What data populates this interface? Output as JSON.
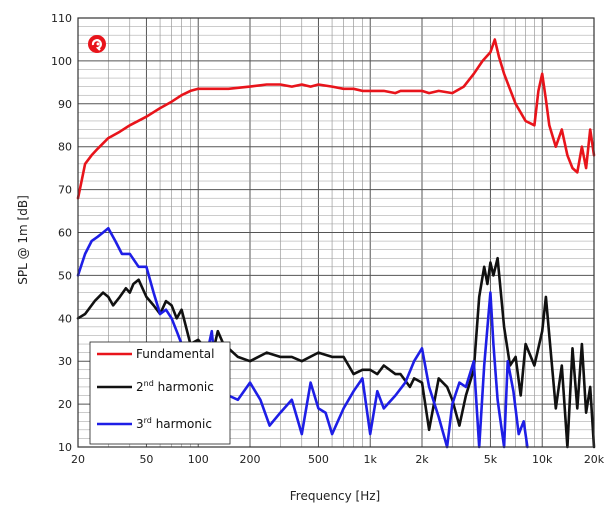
{
  "chart_data": {
    "type": "line",
    "title": "",
    "xlabel": "Frequency [Hz]",
    "ylabel": "SPL @ 1m [dB]",
    "xscale": "log",
    "xlim": [
      20,
      20000
    ],
    "ylim": [
      10,
      110
    ],
    "grid": true,
    "legend_position": "bottom-left",
    "x_ticks": [
      {
        "value": 20,
        "label": "20"
      },
      {
        "value": 50,
        "label": "50"
      },
      {
        "value": 100,
        "label": "100"
      },
      {
        "value": 200,
        "label": "200"
      },
      {
        "value": 500,
        "label": "500"
      },
      {
        "value": 1000,
        "label": "1k"
      },
      {
        "value": 2000,
        "label": "2k"
      },
      {
        "value": 5000,
        "label": "5k"
      },
      {
        "value": 10000,
        "label": "10k"
      },
      {
        "value": 20000,
        "label": "20k"
      }
    ],
    "y_ticks": [
      {
        "value": 10,
        "label": "10"
      },
      {
        "value": 20,
        "label": "20"
      },
      {
        "value": 30,
        "label": "30"
      },
      {
        "value": 40,
        "label": "40"
      },
      {
        "value": 50,
        "label": "50"
      },
      {
        "value": 60,
        "label": "60"
      },
      {
        "value": 70,
        "label": "70"
      },
      {
        "value": 80,
        "label": "80"
      },
      {
        "value": 90,
        "label": "90"
      },
      {
        "value": 100,
        "label": "100"
      },
      {
        "value": 110,
        "label": "110"
      }
    ],
    "series": [
      {
        "name": "Fundamental",
        "color": "#e8141b",
        "x": [
          20,
          21,
          22,
          24,
          26,
          30,
          35,
          40,
          50,
          60,
          70,
          80,
          90,
          100,
          120,
          150,
          200,
          250,
          300,
          350,
          400,
          450,
          500,
          600,
          700,
          800,
          900,
          1000,
          1200,
          1400,
          1500,
          1800,
          2000,
          2200,
          2500,
          3000,
          3500,
          4000,
          4500,
          5000,
          5300,
          5600,
          6000,
          7000,
          8000,
          9000,
          9500,
          10000,
          10500,
          11000,
          12000,
          13000,
          14000,
          15000,
          16000,
          17000,
          18000,
          19000,
          20000
        ],
        "y": [
          68,
          72,
          76,
          78,
          79.5,
          82,
          83.5,
          85,
          87,
          89,
          90.5,
          92,
          93,
          93.5,
          93.5,
          93.5,
          94,
          94.5,
          94.5,
          94,
          94.5,
          94,
          94.5,
          94,
          93.5,
          93.5,
          93,
          93,
          93,
          92.5,
          93,
          93,
          93,
          92.5,
          93,
          92.5,
          94,
          97,
          100,
          102,
          105,
          101,
          97,
          90,
          86,
          85,
          93,
          97,
          91,
          85,
          80,
          84,
          78,
          75,
          74,
          80,
          75,
          84,
          78
        ]
      },
      {
        "name": "2nd harmonic",
        "color": "#111111",
        "x": [
          20,
          22,
          25,
          28,
          30,
          32,
          35,
          38,
          40,
          42,
          45,
          50,
          55,
          60,
          65,
          70,
          75,
          80,
          90,
          100,
          110,
          120,
          130,
          140,
          150,
          170,
          200,
          250,
          300,
          350,
          400,
          500,
          600,
          700,
          800,
          900,
          1000,
          1100,
          1200,
          1400,
          1500,
          1700,
          1800,
          2000,
          2200,
          2500,
          2800,
          3000,
          3300,
          3600,
          4000,
          4300,
          4600,
          4800,
          5000,
          5200,
          5500,
          6000,
          6500,
          7000,
          7500,
          8000,
          9000,
          10000,
          10500,
          11000,
          12000,
          13000,
          14000,
          15000,
          16000,
          17000,
          18000,
          19000,
          20000
        ],
        "y": [
          40,
          41,
          44,
          46,
          45,
          43,
          45,
          47,
          46,
          48,
          49,
          45,
          43,
          41,
          44,
          43,
          40,
          42,
          34,
          35,
          33,
          31,
          37,
          34,
          33,
          31,
          30,
          32,
          31,
          31,
          30,
          32,
          31,
          31,
          27,
          28,
          28,
          27,
          29,
          27,
          27,
          24,
          26,
          25,
          14,
          26,
          24,
          21,
          15,
          22,
          28,
          45,
          52,
          48,
          53,
          50,
          54,
          38,
          29,
          31,
          22,
          34,
          29,
          37,
          45,
          36,
          19,
          29,
          10,
          33,
          19,
          34,
          18,
          24,
          10
        ]
      },
      {
        "name": "3rd harmonic",
        "color": "#1e1ee6",
        "x": [
          20,
          22,
          24,
          26,
          28,
          30,
          33,
          36,
          40,
          45,
          50,
          55,
          60,
          65,
          70,
          75,
          80,
          90,
          100,
          110,
          120,
          130,
          140,
          150,
          170,
          200,
          230,
          260,
          300,
          350,
          400,
          450,
          500,
          550,
          600,
          700,
          800,
          900,
          1000,
          1100,
          1200,
          1400,
          1600,
          1800,
          2000,
          2200,
          2500,
          2800,
          3000,
          3300,
          3600,
          4000,
          4300,
          4600,
          5000,
          5200,
          5500,
          6000,
          6300,
          6800,
          7300,
          7800,
          8200
        ],
        "y": [
          50,
          55,
          58,
          59,
          60,
          61,
          58,
          55,
          55,
          52,
          52,
          46,
          41,
          42,
          40,
          37,
          34,
          30,
          26,
          30,
          37,
          22,
          25,
          22,
          21,
          25,
          21,
          15,
          18,
          21,
          13,
          25,
          19,
          18,
          13,
          19,
          23,
          26,
          13,
          23,
          19,
          22,
          25,
          30,
          33,
          24,
          17,
          10,
          20,
          25,
          24,
          30,
          10,
          29,
          46,
          34,
          21,
          10,
          30,
          23,
          13,
          16,
          10
        ]
      }
    ]
  },
  "logo": {
    "name": "brand-logo",
    "color": "#e8141b"
  },
  "legend": {
    "items": [
      {
        "label": "Fundamental",
        "color": "#e8141b"
      },
      {
        "label_main": "2",
        "label_sup": "nd",
        "label_rest": " harmonic",
        "color": "#111111"
      },
      {
        "label_main": "3",
        "label_sup": "rd",
        "label_rest": " harmonic",
        "color": "#1e1ee6"
      }
    ]
  }
}
